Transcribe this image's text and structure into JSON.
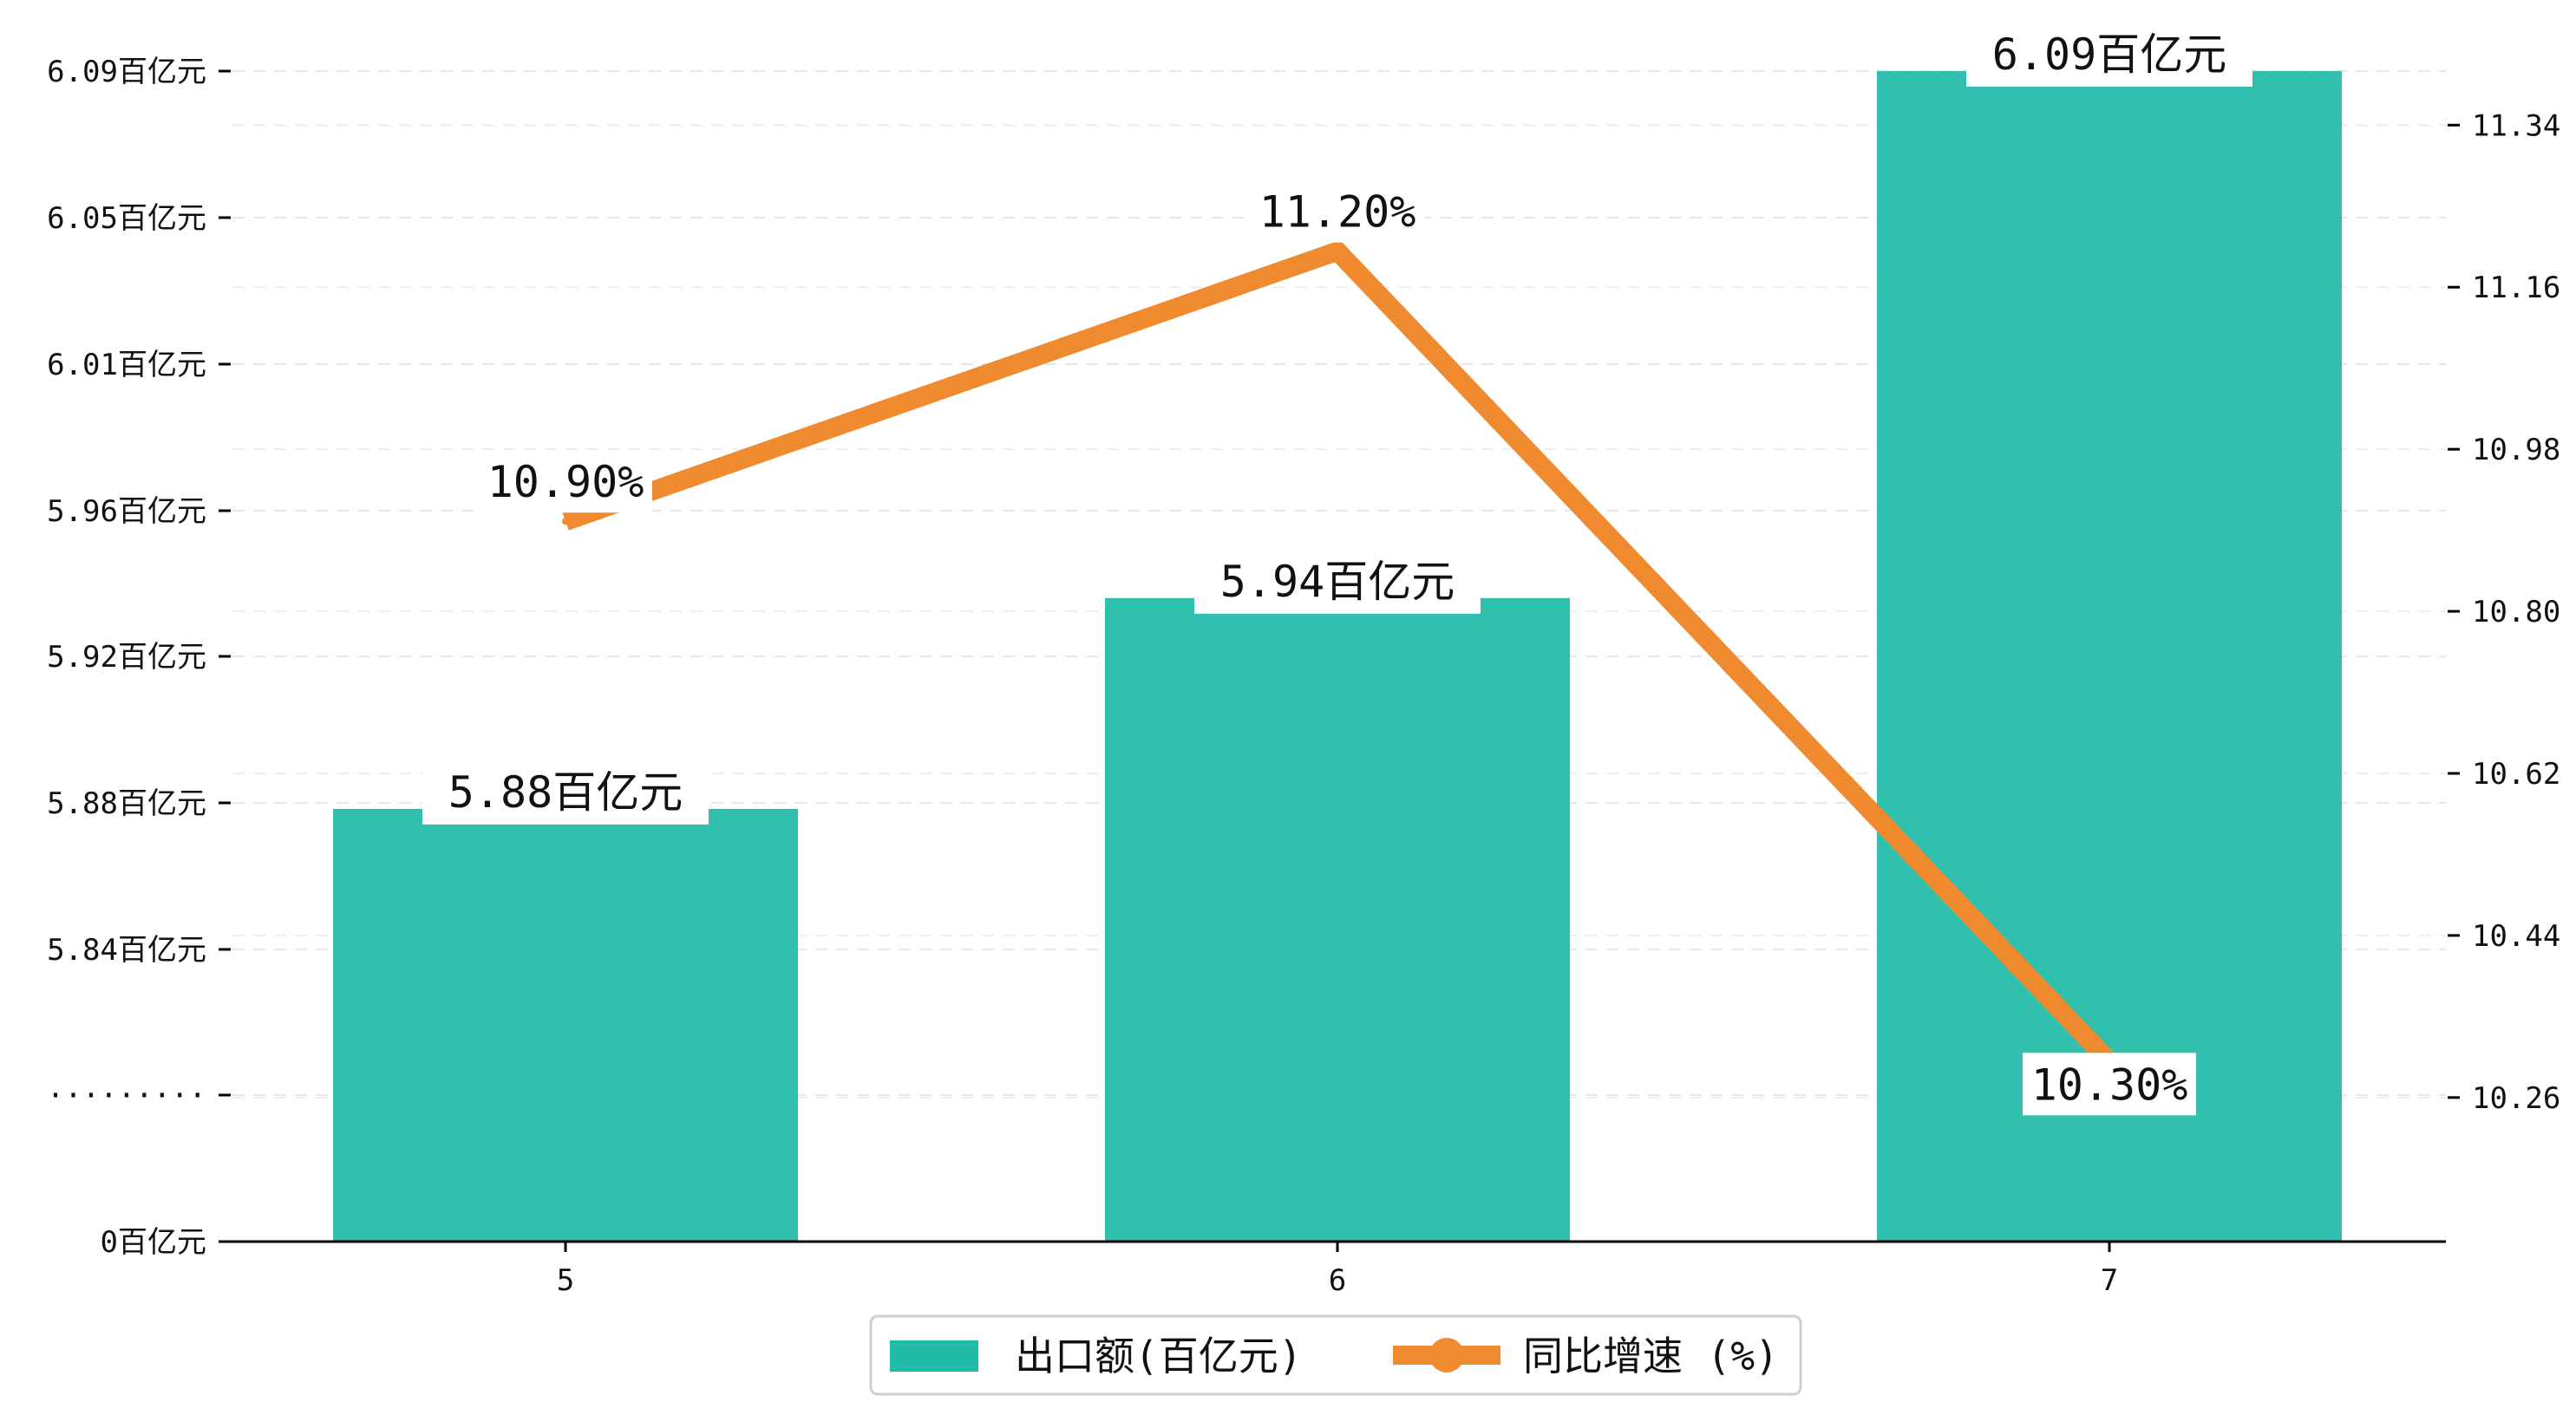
{
  "chart_data": {
    "type": "bar",
    "categories": [
      "5",
      "6",
      "7"
    ],
    "series": [
      {
        "name": "出口额(百亿元)",
        "kind": "bar",
        "axis": "left",
        "values": [
          5.88,
          5.94,
          6.09
        ],
        "value_labels": [
          "5.88百亿元",
          "5.94百亿元",
          "6.09百亿元"
        ],
        "color": "#1fbba6"
      },
      {
        "name": "同比增速 (%)",
        "kind": "line",
        "axis": "right",
        "values": [
          10.9,
          11.2,
          10.3
        ],
        "value_labels": [
          "10.90%",
          "11.20%",
          "10.30%"
        ],
        "color": "#f08a2e"
      }
    ],
    "left_axis": {
      "tick_labels": [
        "0百亿元",
        "·········",
        "5.84百亿元",
        "5.88百亿元",
        "5.92百亿元",
        "5.96百亿元",
        "6.01百亿元",
        "6.05百亿元",
        "6.09百亿元"
      ],
      "broken": true
    },
    "right_axis": {
      "tick_values": [
        10.26,
        10.44,
        10.62,
        10.8,
        10.98,
        11.16,
        11.34
      ],
      "tick_labels": [
        "10.26",
        "10.44",
        "10.62",
        "10.80",
        "10.98",
        "11.16",
        "11.34"
      ],
      "ylim": [
        10.1,
        11.4
      ]
    },
    "grid": "horizontal-dashed",
    "legend_position": "bottom-center"
  }
}
